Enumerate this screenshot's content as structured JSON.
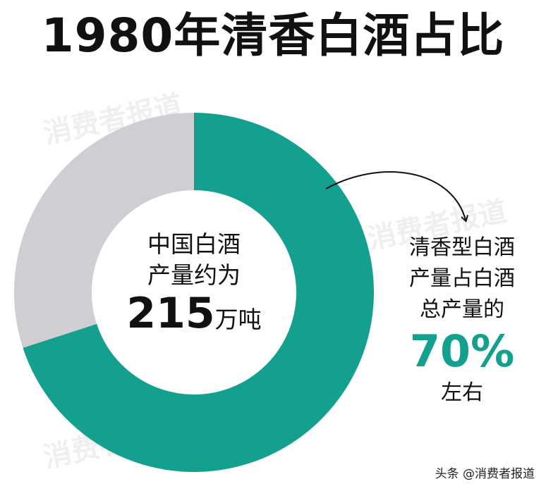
{
  "title": "1980年清香白酒占比",
  "watermark": "消费者报道",
  "center": {
    "line1": "中国白酒",
    "line2": "产量约为",
    "number": "215",
    "unit": "万吨"
  },
  "callout": {
    "line1": "清香型白酒",
    "line2": "产量占白酒",
    "line3": "总产量的",
    "percent": "70%",
    "line4": "左右"
  },
  "footer": "头条 @消费者报道",
  "colors": {
    "qingxiang": "#14a08f",
    "other": "#d0cdd3",
    "text": "#111111"
  },
  "chart_data": {
    "type": "pie",
    "donut": true,
    "slices": [
      {
        "value": 70,
        "color": "#14a08f"
      },
      {
        "value": 30,
        "color": "#d0cdd3"
      }
    ]
  }
}
